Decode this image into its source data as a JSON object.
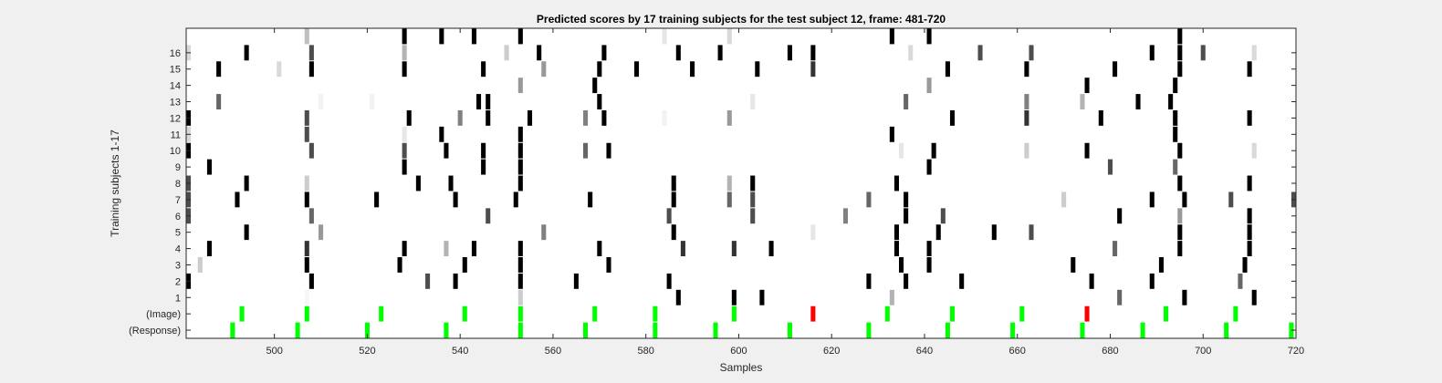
{
  "chart_data": {
    "type": "heatmap",
    "title": "Predicted scores by 17 training subjects for the test subject 12, frame: 481-720",
    "xlabel": "Samples",
    "ylabel": "Training subjects 1-17",
    "xlim": [
      481,
      720
    ],
    "xticks": [
      "500",
      "520",
      "540",
      "560",
      "580",
      "600",
      "620",
      "640",
      "660",
      "680",
      "700",
      "720"
    ],
    "rows": [
      "17",
      "16",
      "15",
      "14",
      "13",
      "12",
      "11",
      "10",
      "9",
      "8",
      "7",
      "6",
      "5",
      "4",
      "3",
      "2",
      "1",
      "(Image)",
      "(Response)"
    ],
    "ytick_rows": [
      "16",
      "15",
      "14",
      "13",
      "12",
      "11",
      "10",
      "9",
      "8",
      "7",
      "6",
      "5",
      "4",
      "3",
      "2",
      "1",
      "(Image)",
      "(Response)"
    ],
    "colors": {
      "green": "#00ff00",
      "red": "#ff0000",
      "background": "#ffffff"
    },
    "series": [
      {
        "row": "17",
        "marks": [
          [
            507,
            0.25
          ],
          [
            528,
            1
          ],
          [
            536,
            1
          ],
          [
            543,
            1
          ],
          [
            553,
            1
          ],
          [
            584,
            0.1
          ],
          [
            598,
            0.15
          ],
          [
            633,
            1
          ],
          [
            641,
            1
          ],
          [
            695,
            1
          ]
        ]
      },
      {
        "row": "16",
        "marks": [
          [
            481,
            0.15
          ],
          [
            494,
            1
          ],
          [
            508,
            0.7
          ],
          [
            528,
            0.3
          ],
          [
            550,
            0.2
          ],
          [
            557,
            1
          ],
          [
            571,
            1
          ],
          [
            587,
            1
          ],
          [
            596,
            1
          ],
          [
            611,
            1
          ],
          [
            616,
            1
          ],
          [
            637,
            0.15
          ],
          [
            652,
            0.7
          ],
          [
            663,
            0.7
          ],
          [
            689,
            1
          ],
          [
            695,
            1
          ],
          [
            700,
            0.7
          ],
          [
            711,
            0.15
          ]
        ]
      },
      {
        "row": "15",
        "marks": [
          [
            488,
            1
          ],
          [
            501,
            0.15
          ],
          [
            508,
            1
          ],
          [
            528,
            1
          ],
          [
            545,
            1
          ],
          [
            558,
            0.4
          ],
          [
            570,
            1
          ],
          [
            578,
            1
          ],
          [
            590,
            1
          ],
          [
            604,
            1
          ],
          [
            616,
            0.8
          ],
          [
            645,
            1
          ],
          [
            662,
            1
          ],
          [
            681,
            1
          ],
          [
            695,
            1
          ],
          [
            710,
            1
          ]
        ]
      },
      {
        "row": "14",
        "marks": [
          [
            553,
            0.4
          ],
          [
            569,
            1
          ],
          [
            641,
            0.4
          ],
          [
            675,
            1
          ],
          [
            694,
            1
          ]
        ]
      },
      {
        "row": "13",
        "marks": [
          [
            488,
            0.6
          ],
          [
            510,
            0.05
          ],
          [
            521,
            0.05
          ],
          [
            544,
            1
          ],
          [
            546,
            1
          ],
          [
            570,
            1
          ],
          [
            603,
            0.1
          ],
          [
            636,
            0.6
          ],
          [
            662,
            0.5
          ],
          [
            674,
            0.3
          ],
          [
            686,
            1
          ],
          [
            693,
            1
          ]
        ]
      },
      {
        "row": "12",
        "marks": [
          [
            481,
            1
          ],
          [
            507,
            0.7
          ],
          [
            529,
            1
          ],
          [
            540,
            0.5
          ],
          [
            546,
            1
          ],
          [
            555,
            1
          ],
          [
            567,
            0.5
          ],
          [
            571,
            1
          ],
          [
            584,
            0.05
          ],
          [
            598,
            0.4
          ],
          [
            646,
            1
          ],
          [
            662,
            0.8
          ],
          [
            678,
            1
          ],
          [
            694,
            1
          ],
          [
            710,
            1
          ]
        ]
      },
      {
        "row": "11",
        "marks": [
          [
            481,
            0.15
          ],
          [
            507,
            0.7
          ],
          [
            528,
            0.1
          ],
          [
            536,
            1
          ],
          [
            553,
            1
          ],
          [
            633,
            1
          ],
          [
            694,
            1
          ]
        ]
      },
      {
        "row": "10",
        "marks": [
          [
            481,
            1
          ],
          [
            508,
            0.7
          ],
          [
            528,
            0.7
          ],
          [
            537,
            1
          ],
          [
            545,
            1
          ],
          [
            553,
            1
          ],
          [
            567,
            0.6
          ],
          [
            572,
            1
          ],
          [
            635,
            0.1
          ],
          [
            642,
            1
          ],
          [
            662,
            0.2
          ],
          [
            675,
            1
          ],
          [
            695,
            1
          ],
          [
            711,
            0.15
          ]
        ]
      },
      {
        "row": "9",
        "marks": [
          [
            486,
            1
          ],
          [
            528,
            1
          ],
          [
            545,
            1
          ],
          [
            553,
            1
          ],
          [
            641,
            1
          ],
          [
            680,
            0.7
          ],
          [
            694,
            0.6
          ]
        ]
      },
      {
        "row": "8",
        "marks": [
          [
            481,
            0.7
          ],
          [
            494,
            1
          ],
          [
            507,
            0.2
          ],
          [
            531,
            1
          ],
          [
            538,
            1
          ],
          [
            553,
            1
          ],
          [
            586,
            1
          ],
          [
            598,
            0.3
          ],
          [
            603,
            1
          ],
          [
            634,
            1
          ],
          [
            695,
            1
          ],
          [
            710,
            1
          ]
        ]
      },
      {
        "row": "7",
        "marks": [
          [
            481,
            0.7
          ],
          [
            492,
            1
          ],
          [
            507,
            1
          ],
          [
            522,
            1
          ],
          [
            539,
            1
          ],
          [
            552,
            1
          ],
          [
            568,
            1
          ],
          [
            586,
            1
          ],
          [
            598,
            0.6
          ],
          [
            603,
            0.7
          ],
          [
            628,
            0.6
          ],
          [
            636,
            1
          ],
          [
            670,
            0.2
          ],
          [
            689,
            1
          ],
          [
            696,
            1
          ],
          [
            706,
            0.7
          ],
          [
            720,
            0.7
          ]
        ]
      },
      {
        "row": "6",
        "marks": [
          [
            481,
            0.7
          ],
          [
            508,
            0.6
          ],
          [
            546,
            0.7
          ],
          [
            585,
            0.7
          ],
          [
            603,
            0.7
          ],
          [
            623,
            0.5
          ],
          [
            636,
            1
          ],
          [
            644,
            0.7
          ],
          [
            682,
            1
          ],
          [
            695,
            0.4
          ],
          [
            710,
            1
          ]
        ]
      },
      {
        "row": "5",
        "marks": [
          [
            494,
            1
          ],
          [
            510,
            0.4
          ],
          [
            558,
            0.5
          ],
          [
            586,
            1
          ],
          [
            616,
            0.1
          ],
          [
            634,
            1
          ],
          [
            643,
            1
          ],
          [
            655,
            1
          ],
          [
            663,
            0.7
          ],
          [
            695,
            1
          ],
          [
            710,
            1
          ]
        ]
      },
      {
        "row": "4",
        "marks": [
          [
            486,
            1
          ],
          [
            507,
            0.8
          ],
          [
            528,
            1
          ],
          [
            537,
            0.3
          ],
          [
            543,
            1
          ],
          [
            553,
            1
          ],
          [
            570,
            1
          ],
          [
            588,
            0.8
          ],
          [
            599,
            0.8
          ],
          [
            607,
            1
          ],
          [
            634,
            1
          ],
          [
            641,
            1
          ],
          [
            681,
            0.6
          ],
          [
            695,
            1
          ],
          [
            710,
            1
          ]
        ]
      },
      {
        "row": "3",
        "marks": [
          [
            484,
            0.2
          ],
          [
            507,
            1
          ],
          [
            527,
            1
          ],
          [
            541,
            1
          ],
          [
            553,
            1
          ],
          [
            572,
            1
          ],
          [
            635,
            1
          ],
          [
            641,
            1
          ],
          [
            672,
            1
          ],
          [
            691,
            1
          ],
          [
            709,
            1
          ]
        ]
      },
      {
        "row": "2",
        "marks": [
          [
            481,
            1
          ],
          [
            508,
            1
          ],
          [
            533,
            0.7
          ],
          [
            539,
            1
          ],
          [
            553,
            1
          ],
          [
            565,
            1
          ],
          [
            585,
            1
          ],
          [
            628,
            1
          ],
          [
            636,
            1
          ],
          [
            648,
            1
          ],
          [
            676,
            1
          ],
          [
            689,
            1
          ],
          [
            708,
            0.6
          ]
        ]
      },
      {
        "row": "1",
        "marks": [
          [
            507,
            0.03
          ],
          [
            553,
            0.2
          ],
          [
            587,
            1
          ],
          [
            599,
            1
          ],
          [
            605,
            1
          ],
          [
            633,
            0.3
          ],
          [
            682,
            0.6
          ],
          [
            696,
            1
          ],
          [
            711,
            1
          ]
        ]
      },
      {
        "row": "(Image)",
        "marks": [
          [
            493,
            "green"
          ],
          [
            507,
            "green"
          ],
          [
            523,
            "green"
          ],
          [
            541,
            "green"
          ],
          [
            553,
            "green"
          ],
          [
            569,
            "green"
          ],
          [
            582,
            "green"
          ],
          [
            599,
            "green"
          ],
          [
            616,
            "red"
          ],
          [
            632,
            "green"
          ],
          [
            646,
            "green"
          ],
          [
            661,
            "green"
          ],
          [
            675,
            "red"
          ],
          [
            692,
            "green"
          ],
          [
            707,
            "green"
          ]
        ]
      },
      {
        "row": "(Response)",
        "marks": [
          [
            491,
            "green"
          ],
          [
            505,
            "green"
          ],
          [
            520,
            "green"
          ],
          [
            537,
            "green"
          ],
          [
            553,
            "green"
          ],
          [
            567,
            "green"
          ],
          [
            582,
            "green"
          ],
          [
            595,
            "green"
          ],
          [
            611,
            "green"
          ],
          [
            628,
            "green"
          ],
          [
            645,
            "green"
          ],
          [
            659,
            "green"
          ],
          [
            674,
            "green"
          ],
          [
            687,
            "green"
          ],
          [
            705,
            "green"
          ],
          [
            719,
            "green"
          ]
        ]
      }
    ]
  }
}
